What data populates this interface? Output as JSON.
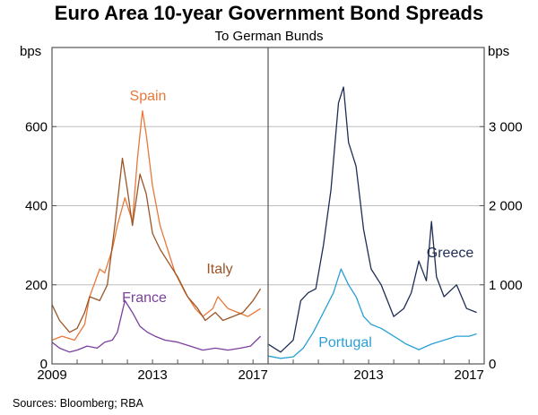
{
  "title": "Euro Area 10-year Government Bond Spreads",
  "subtitle": "To German Bunds",
  "source": "Sources:  Bloomberg; RBA",
  "chart_data": [
    {
      "type": "line",
      "panel": "left",
      "unit": "bps",
      "ylim": [
        0,
        800
      ],
      "y_ticks": [
        "0",
        "200",
        "400",
        "600"
      ],
      "y_tick_values": [
        0,
        200,
        400,
        600
      ],
      "xlim": [
        2009,
        2017.6
      ],
      "x_ticks": [
        "2009",
        "2013",
        "2017"
      ],
      "x_tick_values": [
        2009,
        2013,
        2017
      ],
      "series": [
        {
          "name": "Spain",
          "color": "#e8793a",
          "x": [
            2009.0,
            2009.4,
            2009.9,
            2010.3,
            2010.5,
            2010.9,
            2011.1,
            2011.4,
            2011.6,
            2011.9,
            2012.2,
            2012.4,
            2012.6,
            2012.75,
            2013.0,
            2013.3,
            2013.6,
            2013.9,
            2014.3,
            2014.7,
            2015.0,
            2015.4,
            2015.6,
            2016.0,
            2016.4,
            2016.8,
            2017.3
          ],
          "y": [
            60,
            70,
            60,
            100,
            170,
            240,
            230,
            290,
            350,
            420,
            360,
            520,
            640,
            580,
            450,
            350,
            290,
            230,
            180,
            140,
            120,
            140,
            170,
            140,
            130,
            120,
            140
          ]
        },
        {
          "name": "Italy",
          "color": "#9b5526",
          "x": [
            2009.0,
            2009.3,
            2009.7,
            2010.0,
            2010.3,
            2010.5,
            2010.9,
            2011.2,
            2011.5,
            2011.8,
            2012.0,
            2012.2,
            2012.5,
            2012.75,
            2013.0,
            2013.3,
            2013.6,
            2014.0,
            2014.4,
            2014.8,
            2015.1,
            2015.5,
            2015.8,
            2016.2,
            2016.6,
            2017.0,
            2017.3
          ],
          "y": [
            150,
            110,
            80,
            90,
            130,
            170,
            160,
            200,
            350,
            520,
            440,
            350,
            480,
            430,
            330,
            290,
            260,
            220,
            170,
            140,
            110,
            130,
            110,
            120,
            130,
            160,
            190
          ]
        },
        {
          "name": "France",
          "color": "#7b3f9e",
          "x": [
            2009.0,
            2009.3,
            2009.7,
            2010.0,
            2010.4,
            2010.8,
            2011.1,
            2011.4,
            2011.6,
            2011.9,
            2012.2,
            2012.5,
            2012.8,
            2013.1,
            2013.5,
            2014.0,
            2014.5,
            2015.0,
            2015.5,
            2016.0,
            2016.5,
            2016.9,
            2017.3
          ],
          "y": [
            55,
            40,
            30,
            35,
            45,
            40,
            55,
            60,
            80,
            160,
            130,
            95,
            80,
            70,
            60,
            55,
            45,
            35,
            40,
            35,
            40,
            45,
            70
          ]
        }
      ]
    },
    {
      "type": "line",
      "panel": "right",
      "unit": "bps",
      "ylim": [
        0,
        4000
      ],
      "y_ticks": [
        "0",
        "1 000",
        "2 000",
        "3 000"
      ],
      "y_tick_values": [
        0,
        1000,
        2000,
        3000
      ],
      "xlim": [
        2009,
        2017.6
      ],
      "x_ticks": [
        "2013",
        "2017"
      ],
      "x_tick_values": [
        2013,
        2017
      ],
      "series": [
        {
          "name": "Greece",
          "color": "#1e2d54",
          "x": [
            2009.0,
            2009.5,
            2010.0,
            2010.3,
            2010.6,
            2010.9,
            2011.2,
            2011.5,
            2011.8,
            2012.0,
            2012.2,
            2012.5,
            2012.8,
            2013.1,
            2013.5,
            2014.0,
            2014.4,
            2014.7,
            2015.0,
            2015.3,
            2015.5,
            2015.7,
            2016.0,
            2016.5,
            2016.9,
            2017.3
          ],
          "y": [
            250,
            150,
            300,
            800,
            900,
            950,
            1500,
            2200,
            3300,
            3500,
            2800,
            2500,
            1700,
            1200,
            1000,
            600,
            700,
            900,
            1300,
            1050,
            1800,
            1100,
            850,
            1000,
            700,
            650
          ]
        },
        {
          "name": "Portugal",
          "color": "#2a9fd6",
          "x": [
            2009.0,
            2009.5,
            2010.0,
            2010.4,
            2010.8,
            2011.2,
            2011.6,
            2011.9,
            2012.2,
            2012.5,
            2012.8,
            2013.1,
            2013.5,
            2014.0,
            2014.5,
            2015.0,
            2015.5,
            2016.0,
            2016.5,
            2017.0,
            2017.3
          ],
          "y": [
            100,
            70,
            90,
            200,
            400,
            650,
            900,
            1200,
            1000,
            850,
            600,
            500,
            450,
            350,
            250,
            180,
            250,
            300,
            350,
            350,
            380
          ]
        }
      ]
    }
  ]
}
